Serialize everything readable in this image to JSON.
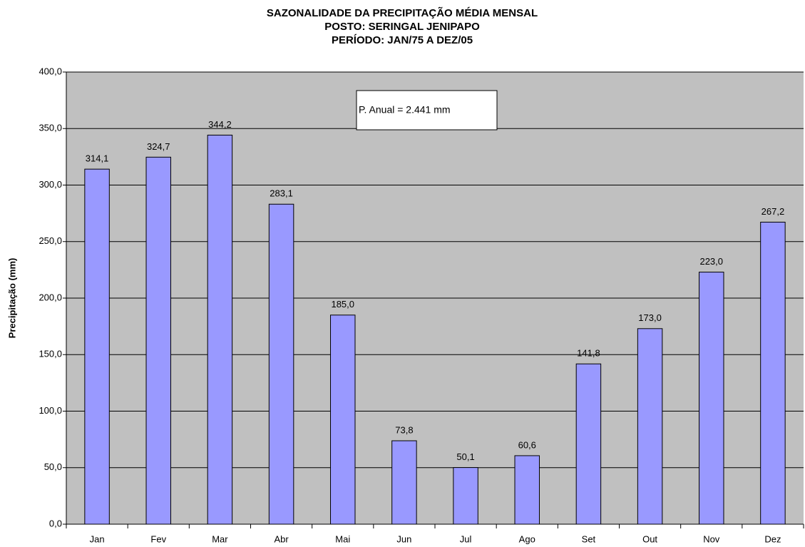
{
  "chart_data": {
    "type": "bar",
    "title": "SAZONALIDADE DA PRECIPITAÇÃO MÉDIA MENSAL",
    "subtitle": [
      "POSTO: SERINGAL JENIPAPO",
      "PERÍODO: JAN/75 A DEZ/05"
    ],
    "y_label": "Precipitação (mm)",
    "annotation": "P. Anual = 2.441 mm",
    "categories": [
      "Jan",
      "Fev",
      "Mar",
      "Abr",
      "Mai",
      "Jun",
      "Jul",
      "Ago",
      "Set",
      "Out",
      "Nov",
      "Dez"
    ],
    "values": [
      314.1,
      324.7,
      344.2,
      283.1,
      185.0,
      73.8,
      50.1,
      60.6,
      141.8,
      173.0,
      223.0,
      267.2
    ],
    "value_labels": [
      "314,1",
      "324,7",
      "344,2",
      "283,1",
      "185,0",
      "73,8",
      "50,1",
      "60,6",
      "141,8",
      "173,0",
      "223,0",
      "267,2"
    ],
    "color": "#9999ff",
    "ylim": [
      0,
      400
    ],
    "yticks": [
      {
        "value": 0,
        "label": "0,0"
      },
      {
        "value": 50,
        "label": "50,0"
      },
      {
        "value": 100,
        "label": "100,0"
      },
      {
        "value": 150,
        "label": "150,0"
      },
      {
        "value": 200,
        "label": "200,0"
      },
      {
        "value": 250,
        "label": "250,0"
      },
      {
        "value": 300,
        "label": "300,0"
      },
      {
        "value": 350,
        "label": "350,0"
      },
      {
        "value": 400,
        "label": "400,0"
      }
    ],
    "grid": true
  }
}
